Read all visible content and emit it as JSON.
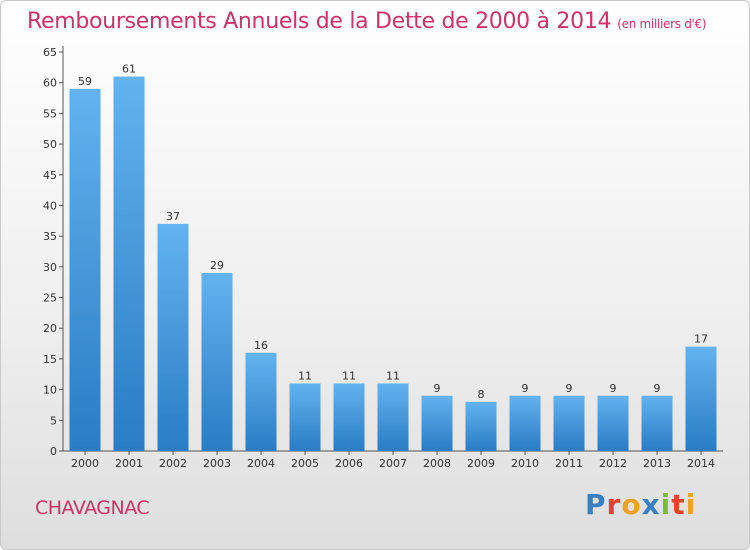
{
  "chart_data": {
    "type": "bar",
    "title": "Remboursements Annuels de la Dette de 2000 à 2014",
    "subtitle": "(en milliers d'€)",
    "categories": [
      "2000",
      "2001",
      "2002",
      "2003",
      "2004",
      "2005",
      "2006",
      "2007",
      "2008",
      "2009",
      "2010",
      "2011",
      "2012",
      "2013",
      "2014"
    ],
    "values": [
      59,
      61,
      37,
      29,
      16,
      11,
      11,
      11,
      9,
      8,
      9,
      9,
      9,
      9,
      17
    ],
    "ylim": [
      0,
      65
    ],
    "yticks": [
      0,
      5,
      10,
      15,
      20,
      25,
      30,
      35,
      40,
      45,
      50,
      55,
      60,
      65
    ],
    "grid": false,
    "bar_color": "#3a8fd6"
  },
  "footer": {
    "city": "CHAVAGNAC",
    "brand": "Proxiti",
    "brand_colors": [
      "#3a7fc0",
      "#e8412c",
      "#f0a11e",
      "#3a7fc0",
      "#7bbf2f",
      "#e8412c",
      "#f0a11e"
    ]
  },
  "colors": {
    "title": "#cc3366",
    "axis": "#555555"
  }
}
